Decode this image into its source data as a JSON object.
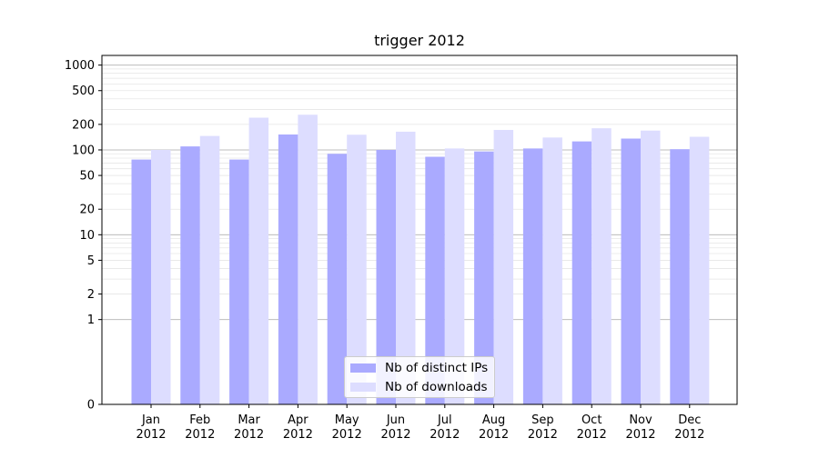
{
  "chart_data": {
    "type": "bar",
    "title": "trigger 2012",
    "categories": [
      "Jan\n2012",
      "Feb\n2012",
      "Mar\n2012",
      "Apr\n2012",
      "May\n2012",
      "Jun\n2012",
      "Jul\n2012",
      "Aug\n2012",
      "Sep\n2012",
      "Oct\n2012",
      "Nov\n2012",
      "Dec\n2012"
    ],
    "series": [
      {
        "name": "Nb of distinct IPs",
        "color": "#aaaaff",
        "values": [
          77,
          110,
          77,
          152,
          90,
          100,
          83,
          96,
          104,
          126,
          136,
          102
        ]
      },
      {
        "name": "Nb of downloads",
        "color": "#ddddff",
        "values": [
          100,
          146,
          240,
          260,
          151,
          164,
          104,
          172,
          140,
          180,
          169,
          143
        ]
      }
    ],
    "y_scale": "symlog",
    "y_ticks": [
      0,
      1,
      2,
      5,
      10,
      20,
      50,
      100,
      200,
      500,
      1000
    ],
    "y_tick_labels": [
      "0",
      "1",
      "2",
      "5",
      "10",
      "20",
      "50",
      "100",
      "200",
      "500",
      "1000"
    ],
    "ylim": [
      0,
      1300
    ],
    "grid": true,
    "legend_placement": "lower-center"
  }
}
